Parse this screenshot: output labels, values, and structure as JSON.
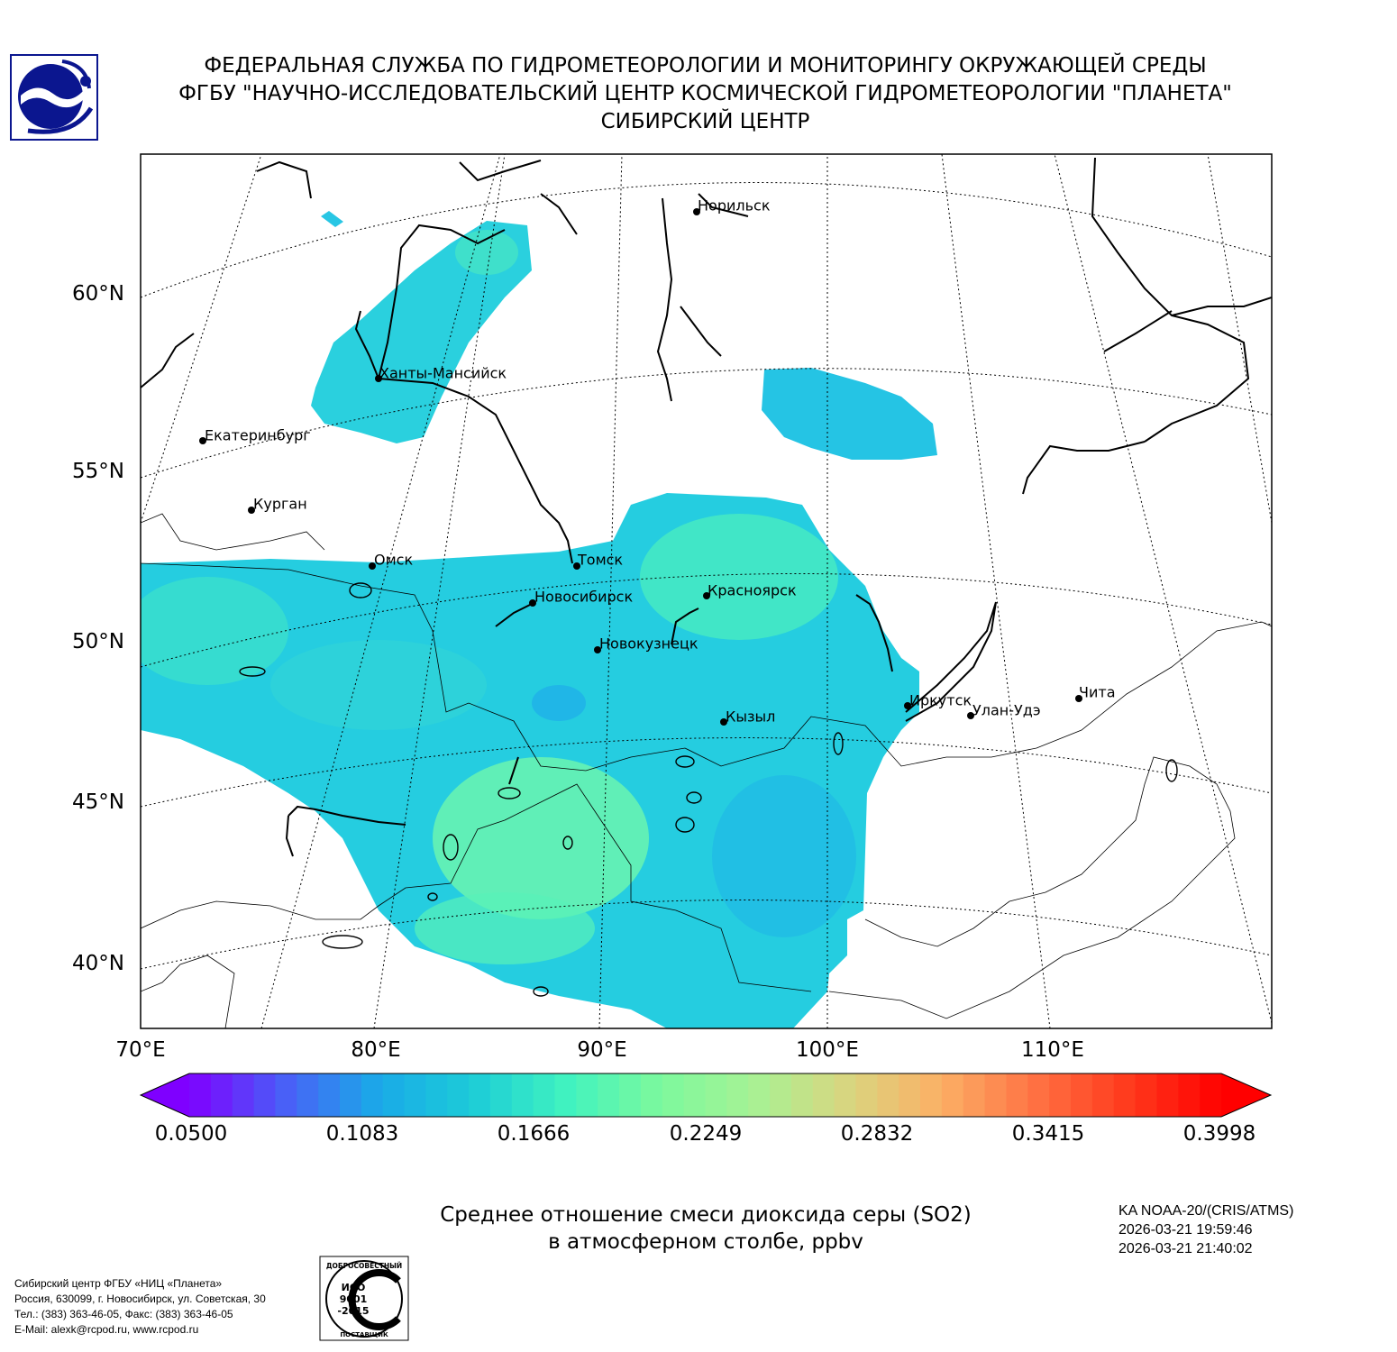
{
  "header": {
    "line1": "ФЕДЕРАЛЬНАЯ СЛУЖБА ПО ГИДРОМЕТЕОРОЛОГИИ И МОНИТОРИНГУ ОКРУЖАЮЩЕЙ СРЕДЫ",
    "line2": "ФГБУ \"НАУЧНО-ИССЛЕДОВАТЕЛЬСКИЙ ЦЕНТР КОСМИЧЕСКОЙ ГИДРОМЕТЕОРОЛОГИИ \"ПЛАНЕТА\"",
    "line3": "СИБИРСКИЙ ЦЕНТР"
  },
  "map": {
    "lat_labels": [
      "60°N",
      "55°N",
      "50°N",
      "45°N",
      "40°N"
    ],
    "lon_labels": [
      "70°E",
      "80°E",
      "90°E",
      "100°E",
      "110°E"
    ],
    "cities": [
      {
        "name": "Норильск"
      },
      {
        "name": "Ханты-Мансийск"
      },
      {
        "name": "Екатеринбург"
      },
      {
        "name": "Курган"
      },
      {
        "name": "Омск"
      },
      {
        "name": "Томск"
      },
      {
        "name": "Новосибирск"
      },
      {
        "name": "Красноярск"
      },
      {
        "name": "Новокузнецк"
      },
      {
        "name": "Иркутск"
      },
      {
        "name": "Кызыл"
      },
      {
        "name": "Улан-Удэ"
      },
      {
        "name": "Чита"
      }
    ]
  },
  "colorbar": {
    "min": 0.05,
    "max": 0.3998,
    "labels": [
      "0.0500",
      "0.1083",
      "0.1666",
      "0.2249",
      "0.2832",
      "0.3415",
      "0.3998"
    ]
  },
  "caption": {
    "line1": "Среднее отношение смеси диоксида серы (SO2)",
    "line2": "в атмосферном столбе, ppbv"
  },
  "satellite": {
    "instrument": "KA NOAA-20/(CRIS/ATMS)",
    "time_start": "2026-03-21 19:59:46",
    "time_end": "2026-03-21 21:40:02"
  },
  "footer": {
    "line1": "Сибирский центр ФГБУ «НИЦ «Планета»",
    "line2": "Россия, 630099, г. Новосибирск, ул. Советская, 30",
    "line3": "Тел.: (383) 363-46-05, Факс: (383) 363-46-05",
    "line4": "E-Mail: alexk@rcpod.ru, www.rcpod.ru"
  },
  "iso_badge": {
    "top_text": "ДОБРОСОВЕСТНЫЙ",
    "bottom_text": "ПОСТАВЩИК",
    "center_text_1": "ИСО",
    "center_text_2": "9001",
    "center_text_3": "-2015"
  },
  "colors": {
    "logo_blue": "#0b168f",
    "cmap": [
      "#7f00ff",
      "#4a5ef7",
      "#1aa9e8",
      "#1ccbd8",
      "#3ff2c0",
      "#7bf99e",
      "#a6f294",
      "#d8d680",
      "#fbb066",
      "#ff7344",
      "#ff3a1d",
      "#ff0000"
    ]
  }
}
